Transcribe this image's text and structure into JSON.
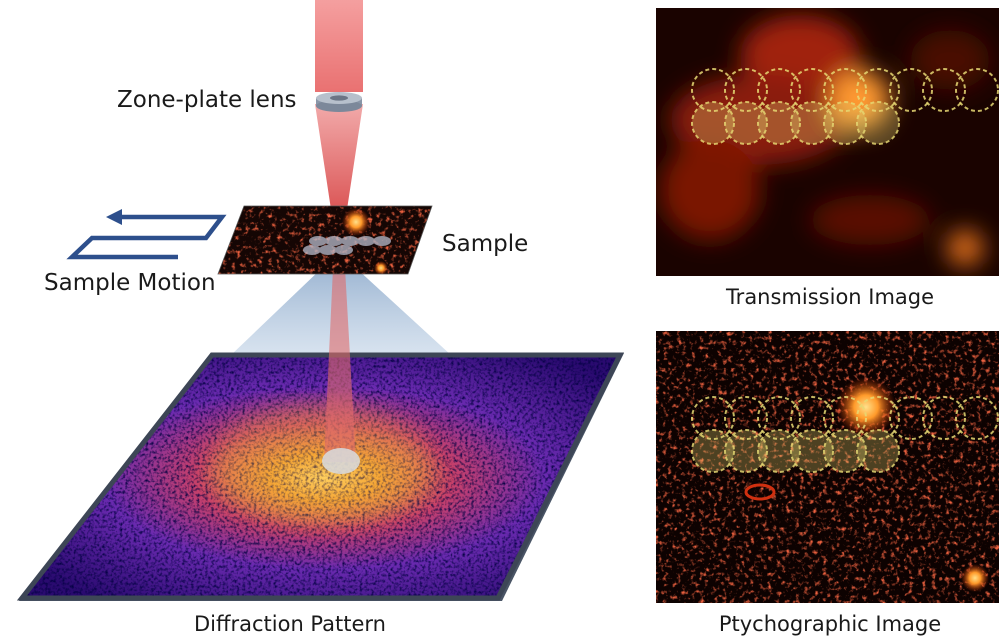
{
  "labels": {
    "zone_plate": "Zone-plate lens",
    "sample": "Sample",
    "sample_motion": "Sample Motion",
    "diffraction": "Diffraction Pattern",
    "transmission": "Transmission Image",
    "ptychographic": "Ptychographic Image"
  },
  "icons": {
    "motion_path": "serpentine-arrow-icon"
  },
  "colors": {
    "beam": "#f07070",
    "motion_arrow": "#2d4f8c",
    "detector_edge": "#4a5566",
    "scan_circles": "#e6d873",
    "cone": "#a9c2dc"
  },
  "scan_grid": {
    "rows": 2,
    "columns_top": 9,
    "columns_bottom": 6
  }
}
